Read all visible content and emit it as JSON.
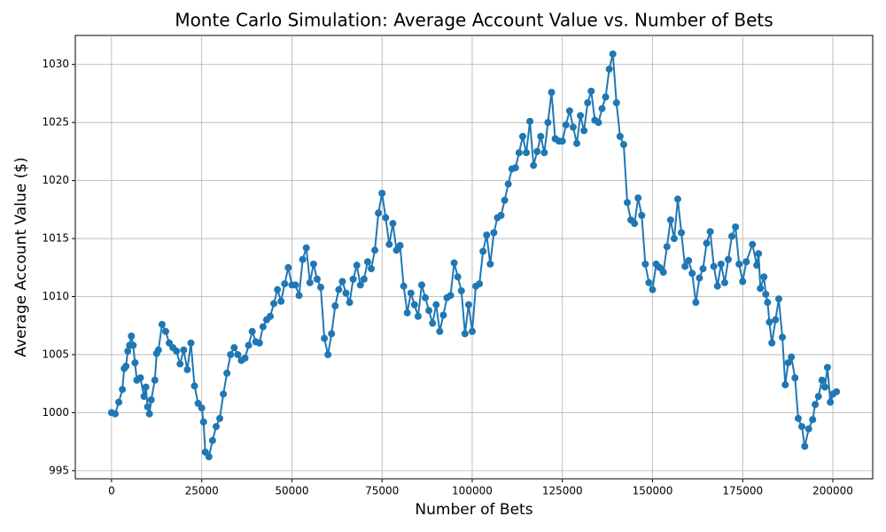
{
  "chart_data": {
    "type": "line",
    "title": "Monte Carlo Simulation: Average Account Value vs. Number of Bets",
    "x_label": "Number of Bets",
    "y_label": "Average Account Value ($)",
    "xlim": [
      -10050,
      211050
    ],
    "ylim": [
      994.3,
      1032.5
    ],
    "xticks": [
      0,
      25000,
      50000,
      75000,
      100000,
      125000,
      150000,
      175000,
      200000
    ],
    "yticks": [
      995,
      1000,
      1005,
      1010,
      1015,
      1020,
      1025,
      1030
    ],
    "grid": true,
    "x": [
      0,
      1000,
      2000,
      3000,
      3500,
      4000,
      4500,
      5000,
      5500,
      6000,
      6500,
      7000,
      8000,
      9000,
      9500,
      10000,
      10500,
      11000,
      12000,
      12500,
      13000,
      14000,
      15000,
      16000,
      17000,
      18000,
      19000,
      20000,
      21000,
      22000,
      23000,
      24000,
      25000,
      25500,
      26000,
      27000,
      28000,
      29000,
      30000,
      31000,
      32000,
      33000,
      34000,
      35000,
      36000,
      37000,
      38000,
      39000,
      40000,
      41000,
      42000,
      43000,
      44000,
      45000,
      46000,
      47000,
      48000,
      49000,
      50000,
      51000,
      52000,
      53000,
      54000,
      55000,
      56000,
      57000,
      58000,
      59000,
      60000,
      61000,
      62000,
      63000,
      64000,
      65000,
      66000,
      67000,
      68000,
      69000,
      70000,
      71000,
      72000,
      73000,
      74000,
      75000,
      76000,
      77000,
      78000,
      79000,
      80000,
      81000,
      82000,
      83000,
      84000,
      85000,
      86000,
      87000,
      88000,
      89000,
      90000,
      91000,
      92000,
      93000,
      94000,
      95000,
      96000,
      97000,
      98000,
      99000,
      100000,
      101000,
      102000,
      103000,
      104000,
      105000,
      106000,
      107000,
      108000,
      109000,
      110000,
      111000,
      112000,
      113000,
      114000,
      115000,
      116000,
      117000,
      118000,
      119000,
      120000,
      121000,
      122000,
      123000,
      124000,
      125000,
      126000,
      127000,
      128000,
      129000,
      130000,
      131000,
      132000,
      133000,
      134000,
      135000,
      136000,
      137000,
      138000,
      139000,
      140000,
      141000,
      142000,
      143000,
      144000,
      145000,
      146000,
      147000,
      148000,
      149000,
      150000,
      151000,
      152000,
      153000,
      154000,
      155000,
      156000,
      157000,
      158000,
      159000,
      160000,
      161000,
      162000,
      163000,
      164000,
      165000,
      166000,
      167000,
      168000,
      169000,
      170000,
      171000,
      172000,
      173000,
      174000,
      175000,
      176000,
      177700,
      178900,
      179400,
      179900,
      180900,
      181400,
      181900,
      182400,
      183100,
      184100,
      185000,
      186000,
      186800,
      187600,
      188500,
      189500,
      190400,
      191400,
      192200,
      193300,
      194400,
      195100,
      196000,
      197000,
      197800,
      198500,
      199300,
      200000,
      201000
    ],
    "series": [
      {
        "name": "Average Account Value",
        "color": "#1f77b4",
        "values": [
          1000.0,
          999.9,
          1000.9,
          1002.0,
          1003.8,
          1004.0,
          1005.3,
          1005.8,
          1006.6,
          1005.8,
          1004.3,
          1002.8,
          1003.0,
          1001.4,
          1002.2,
          1000.5,
          999.9,
          1001.1,
          1002.8,
          1005.1,
          1005.4,
          1007.6,
          1007.0,
          1006.0,
          1005.6,
          1005.3,
          1004.2,
          1005.4,
          1003.7,
          1006.0,
          1002.3,
          1000.8,
          1000.4,
          999.2,
          996.6,
          996.2,
          997.6,
          998.8,
          999.5,
          1001.6,
          1003.4,
          1005.0,
          1005.6,
          1005.0,
          1004.5,
          1004.7,
          1005.8,
          1007.0,
          1006.1,
          1006.0,
          1007.4,
          1008.0,
          1008.3,
          1009.4,
          1010.6,
          1009.6,
          1011.1,
          1012.5,
          1011.0,
          1011.0,
          1010.1,
          1013.2,
          1014.2,
          1011.2,
          1012.8,
          1011.5,
          1010.8,
          1006.4,
          1005.0,
          1006.8,
          1009.2,
          1010.6,
          1011.3,
          1010.3,
          1009.5,
          1011.5,
          1012.7,
          1011.0,
          1011.5,
          1013.0,
          1012.4,
          1014.0,
          1017.2,
          1018.9,
          1016.8,
          1014.5,
          1016.3,
          1014.0,
          1014.4,
          1010.9,
          1008.6,
          1010.3,
          1009.3,
          1008.3,
          1011.0,
          1009.9,
          1008.8,
          1007.7,
          1009.3,
          1007.0,
          1008.4,
          1009.9,
          1010.1,
          1012.9,
          1011.7,
          1010.5,
          1006.8,
          1009.3,
          1007.0,
          1010.9,
          1011.1,
          1013.9,
          1015.3,
          1012.8,
          1015.5,
          1016.8,
          1017.0,
          1018.3,
          1019.7,
          1021.0,
          1021.1,
          1022.4,
          1023.8,
          1022.4,
          1025.1,
          1021.3,
          1022.5,
          1023.8,
          1022.4,
          1025.0,
          1027.6,
          1023.6,
          1023.4,
          1023.4,
          1024.8,
          1026.0,
          1024.6,
          1023.2,
          1025.6,
          1024.3,
          1026.7,
          1027.7,
          1025.2,
          1025.0,
          1026.2,
          1027.2,
          1029.6,
          1030.9,
          1026.7,
          1023.8,
          1023.1,
          1018.1,
          1016.6,
          1016.3,
          1018.5,
          1017.0,
          1012.8,
          1011.2,
          1010.6,
          1012.8,
          1012.5,
          1012.1,
          1014.3,
          1016.6,
          1015.0,
          1018.4,
          1015.5,
          1012.6,
          1013.1,
          1012.0,
          1009.5,
          1011.6,
          1012.4,
          1014.6,
          1015.6,
          1012.6,
          1010.9,
          1012.8,
          1011.2,
          1013.2,
          1015.2,
          1016.0,
          1012.8,
          1011.3,
          1013.0,
          1014.5,
          1012.7,
          1013.7,
          1010.7,
          1011.7,
          1010.2,
          1009.5,
          1007.8,
          1006.0,
          1008.0,
          1009.8,
          1006.5,
          1002.4,
          1004.3,
          1004.8,
          1003.0,
          999.5,
          998.8,
          997.1,
          998.6,
          999.4,
          1000.7,
          1001.4,
          1002.8,
          1002.2,
          1003.9,
          1000.9,
          1001.6,
          1001.8
        ]
      }
    ]
  }
}
